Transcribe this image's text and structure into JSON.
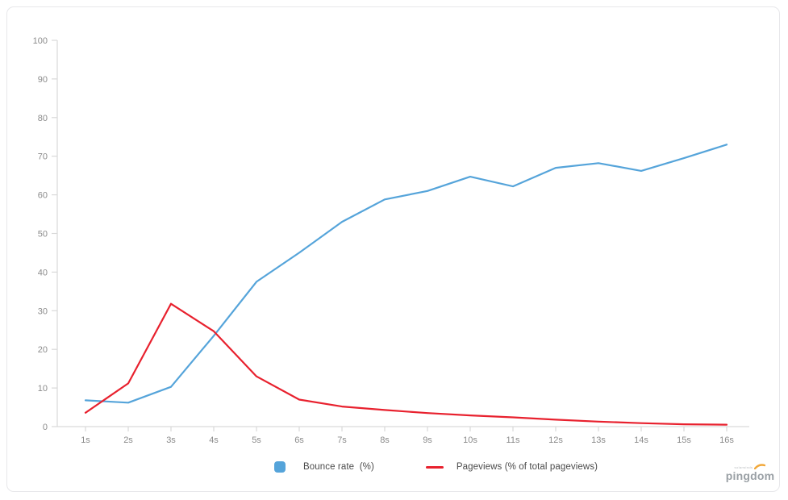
{
  "chart_data": {
    "type": "line",
    "title": "",
    "xlabel": "",
    "ylabel": "",
    "x_categories": [
      "1s",
      "2s",
      "3s",
      "4s",
      "5s",
      "6s",
      "7s",
      "8s",
      "9s",
      "10s",
      "11s",
      "12s",
      "13s",
      "14s",
      "15s",
      "16s"
    ],
    "ylim": [
      0,
      100
    ],
    "y_ticks": [
      0,
      10,
      20,
      30,
      40,
      50,
      60,
      70,
      80,
      90,
      100
    ],
    "grid": false,
    "legend_position": "bottom",
    "series": [
      {
        "name": "Bounce rate  (%)",
        "color": "#55a4da",
        "swatch": "square",
        "values": [
          6.8,
          6.2,
          10.3,
          23.5,
          37.5,
          45.0,
          53.0,
          58.8,
          61.0,
          64.7,
          62.2,
          67.0,
          68.2,
          66.2,
          69.5,
          73.0
        ]
      },
      {
        "name": "Pageviews (% of total pageviews)",
        "color": "#e8212e",
        "swatch": "line",
        "values": [
          3.6,
          11.2,
          31.8,
          24.7,
          13.0,
          7.0,
          5.2,
          4.3,
          3.5,
          2.9,
          2.4,
          1.8,
          1.3,
          0.9,
          0.6,
          0.5
        ]
      }
    ]
  },
  "branding": {
    "logo_text": "pingdom",
    "logo_small_text": "solarwinds"
  },
  "colors": {
    "axis": "#d9d9d9",
    "tick_text": "#8b8b8b",
    "bounce": "#55a4da",
    "pageviews": "#e8212e",
    "swoosh": "#f2a83a"
  }
}
